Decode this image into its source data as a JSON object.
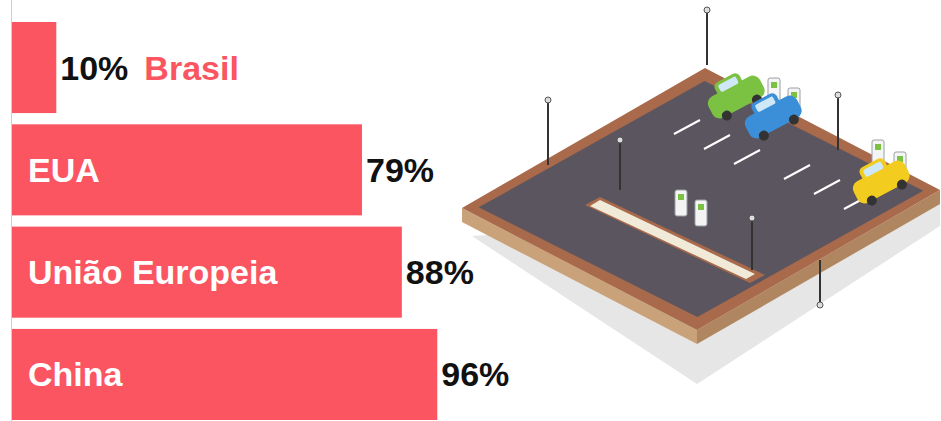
{
  "chart_data": {
    "type": "bar",
    "orientation": "horizontal",
    "categories": [
      "Brasil",
      "EUA",
      "União Europeia",
      "China"
    ],
    "values": [
      10,
      79,
      88,
      96
    ],
    "value_labels": [
      "10%",
      "79%",
      "88%",
      "96%"
    ],
    "color": "#fc5562",
    "xlim": [
      0,
      100
    ],
    "data_labels": true,
    "tick_labels": false
  }
}
